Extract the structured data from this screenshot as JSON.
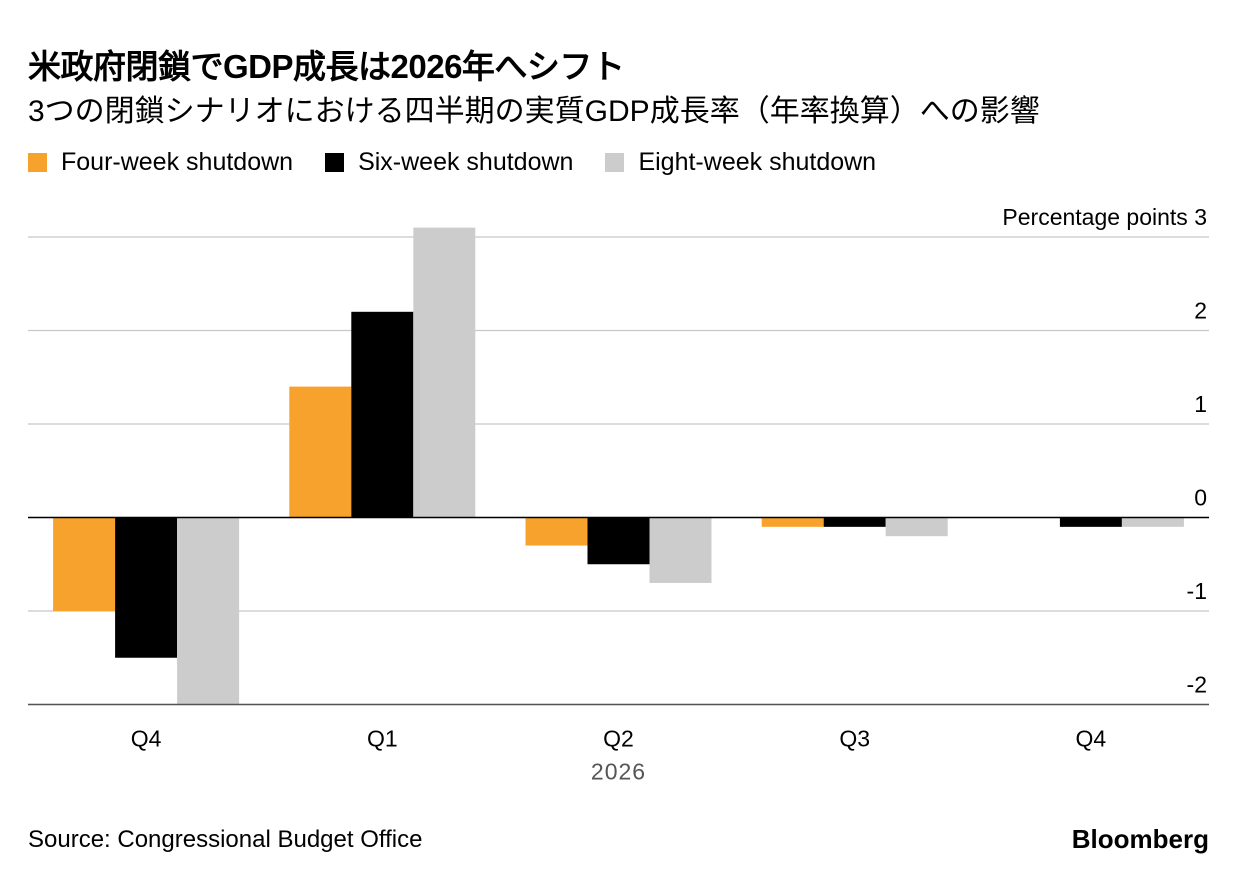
{
  "title": "米政府閉鎖でGDP成長は2026年へシフト",
  "subtitle": "3つの閉鎖シナリオにおける四半期の実質GDP成長率（年率換算）への影響",
  "source": "Source: Congressional Budget Office",
  "brand": "Bloomberg",
  "chart_data": {
    "type": "bar",
    "title": "米政府閉鎖でGDP成長は2026年へシフト",
    "subtitle": "3つの閉鎖シナリオにおける四半期の実質GDP成長率（年率換算）への影響",
    "ylabel": "Percentage points",
    "xlabel": "2026",
    "categories": [
      "Q4",
      "Q1",
      "Q2",
      "Q3",
      "Q4"
    ],
    "year_label": "2026",
    "ylim": [
      -2,
      3
    ],
    "yticks": [
      -2,
      -1,
      0,
      1,
      2,
      3
    ],
    "ytick_labels": [
      "-2",
      "-1",
      "0",
      "1",
      "2",
      "3"
    ],
    "top_tick_prefix": "Percentage points",
    "legend_position": "top-left",
    "series": [
      {
        "name": "Four-week shutdown",
        "color": "#f8a22e",
        "values": [
          -1.0,
          1.4,
          -0.3,
          -0.1,
          0.0
        ]
      },
      {
        "name": "Six-week shutdown",
        "color": "#000000",
        "values": [
          -1.5,
          2.2,
          -0.5,
          -0.1,
          -0.1
        ]
      },
      {
        "name": "Eight-week shutdown",
        "color": "#cccccc",
        "values": [
          -2.0,
          3.1,
          -0.7,
          -0.2,
          -0.1
        ]
      }
    ]
  }
}
